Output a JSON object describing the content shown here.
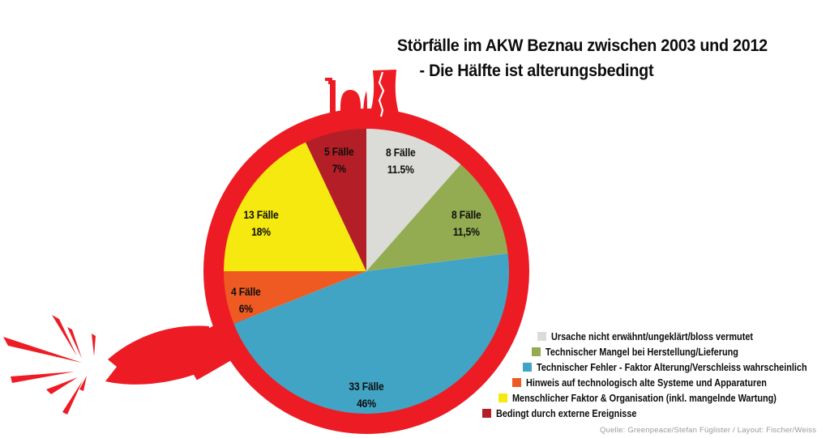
{
  "title": {
    "line1": "Störfälle im AKW Beznau zwischen 2003 und 2012",
    "line2": "- Die Hälfte ist alterungsbedingt"
  },
  "source": "Quelle: Greenpeace/Stefan Füglister / Layout: Fischer/Weiss",
  "colors": {
    "bomb_red": "#ed1c24",
    "title_text": "#0d0d0d",
    "source_text": "#9a9a9a"
  },
  "chart_data": {
    "type": "pie",
    "title": "Störfälle im AKW Beznau zwischen 2003 und 2012 - Die Hälfte ist alterungsbedingt",
    "unit": "Fälle",
    "start_angle_deg": 0,
    "direction": "clockwise",
    "legend_position": "bottom-right",
    "slices": [
      {
        "label": "Ursache nicht erwähnt/ungeklärt/bloss vermutet",
        "cases": 8,
        "percent": 11.5,
        "count_label": "8 Fälle",
        "percent_label": "11.5%",
        "color": "#dbdcd8"
      },
      {
        "label": "Technischer Mangel bei Herstellung/Lieferung",
        "cases": 8,
        "percent": 11.5,
        "count_label": "8 Fälle",
        "percent_label": "11,5%",
        "color": "#94ac51"
      },
      {
        "label": "Technischer Fehler - Faktor Alterung/Verschleiss wahrscheinlich",
        "cases": 33,
        "percent": 46,
        "count_label": "33 Fälle",
        "percent_label": "46%",
        "color": "#42a4c4"
      },
      {
        "label": "Hinweis auf technologisch alte Systeme und Apparaturen",
        "cases": 4,
        "percent": 6,
        "count_label": "4 Fälle",
        "percent_label": "6%",
        "color": "#ee5a22"
      },
      {
        "label": "Menschlicher Faktor & Organisation (inkl. mangelnde Wartung)",
        "cases": 13,
        "percent": 18,
        "count_label": "13 Fälle",
        "percent_label": "18%",
        "color": "#f5e90f"
      },
      {
        "label": "Bedingt durch externe Ereignisse",
        "cases": 5,
        "percent": 7,
        "count_label": "5 Fälle",
        "percent_label": "7%",
        "color": "#b41f27"
      }
    ]
  }
}
